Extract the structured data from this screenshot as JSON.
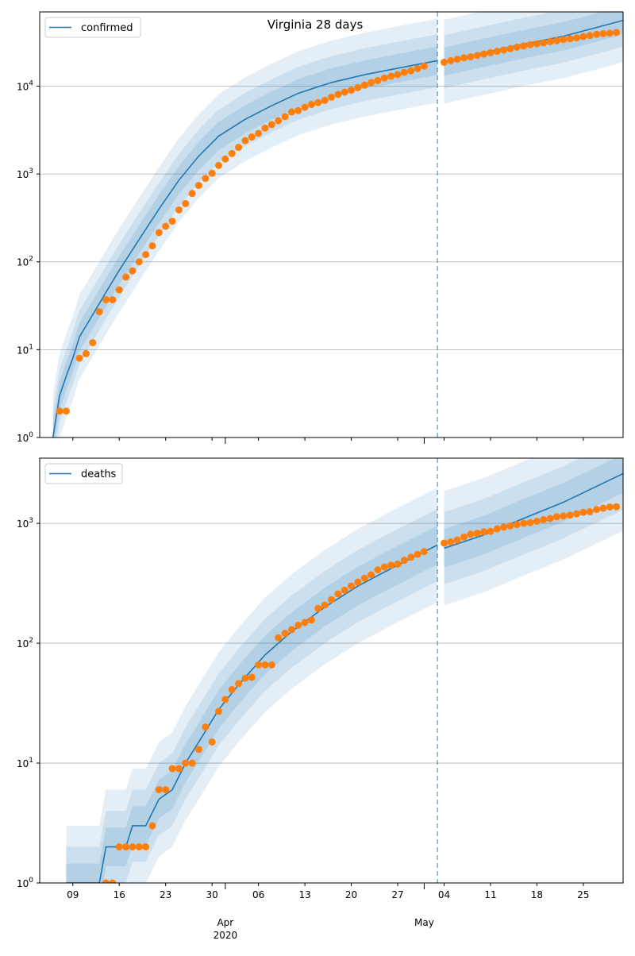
{
  "chart_data": [
    {
      "type": "line",
      "title": "Virginia 28 days",
      "yscale": "log",
      "ylim": [
        1,
        70000
      ],
      "y_ticks": [
        {
          "value": 1,
          "mantissa": "10",
          "exponent": "0"
        },
        {
          "value": 10,
          "mantissa": "10",
          "exponent": "1"
        },
        {
          "value": 100,
          "mantissa": "10",
          "exponent": "2"
        },
        {
          "value": 1000,
          "mantissa": "10",
          "exponent": "3"
        },
        {
          "value": 10000,
          "mantissa": "10",
          "exponent": "4"
        }
      ],
      "grid": "y-major",
      "legend": {
        "placement": "upper-left",
        "label": "confirmed"
      },
      "vline_date": "2020-05-03",
      "series": [
        {
          "name": "confirmed",
          "kind": "model-line",
          "points": [
            [
              "2020-03-06",
              1
            ],
            [
              "2020-03-07",
              3
            ],
            [
              "2020-03-08",
              5
            ],
            [
              "2020-03-09",
              8
            ],
            [
              "2020-03-10",
              14
            ],
            [
              "2020-03-12",
              25
            ],
            [
              "2020-03-14",
              45
            ],
            [
              "2020-03-16",
              80
            ],
            [
              "2020-03-19",
              180
            ],
            [
              "2020-03-22",
              400
            ],
            [
              "2020-03-25",
              850
            ],
            [
              "2020-03-28",
              1600
            ],
            [
              "2020-03-31",
              2700
            ],
            [
              "2020-04-04",
              4200
            ],
            [
              "2020-04-08",
              6000
            ],
            [
              "2020-04-12",
              8300
            ],
            [
              "2020-04-17",
              11000
            ],
            [
              "2020-04-22",
              13500
            ],
            [
              "2020-04-27",
              16000
            ],
            [
              "2020-05-03",
              19500
            ]
          ]
        },
        {
          "kind": "forecast-line",
          "points": [
            [
              "2020-05-04",
              19000
            ],
            [
              "2020-05-10",
              24000
            ],
            [
              "2020-05-16",
              30000
            ],
            [
              "2020-05-22",
              37000
            ],
            [
              "2020-05-31",
              56000
            ]
          ]
        },
        {
          "kind": "observed",
          "points": [
            [
              "2020-03-07",
              2
            ],
            [
              "2020-03-08",
              2
            ],
            [
              "2020-03-10",
              8
            ],
            [
              "2020-03-11",
              9
            ],
            [
              "2020-03-12",
              12
            ],
            [
              "2020-03-13",
              27
            ],
            [
              "2020-03-14",
              37
            ],
            [
              "2020-03-15",
              37
            ],
            [
              "2020-03-16",
              48
            ],
            [
              "2020-03-17",
              67
            ],
            [
              "2020-03-18",
              79
            ],
            [
              "2020-03-19",
              100
            ],
            [
              "2020-03-20",
              121
            ],
            [
              "2020-03-21",
              152
            ],
            [
              "2020-03-22",
              215
            ],
            [
              "2020-03-23",
              254
            ],
            [
              "2020-03-24",
              290
            ],
            [
              "2020-03-25",
              390
            ],
            [
              "2020-03-26",
              460
            ],
            [
              "2020-03-27",
              600
            ],
            [
              "2020-03-28",
              740
            ],
            [
              "2020-03-29",
              890
            ],
            [
              "2020-03-30",
              1020
            ],
            [
              "2020-03-31",
              1250
            ],
            [
              "2020-04-01",
              1480
            ],
            [
              "2020-04-02",
              1710
            ],
            [
              "2020-04-03",
              2010
            ],
            [
              "2020-04-04",
              2400
            ],
            [
              "2020-04-05",
              2640
            ],
            [
              "2020-04-06",
              2900
            ],
            [
              "2020-04-07",
              3330
            ],
            [
              "2020-04-08",
              3650
            ],
            [
              "2020-04-09",
              4040
            ],
            [
              "2020-04-10",
              4500
            ],
            [
              "2020-04-11",
              5080
            ],
            [
              "2020-04-12",
              5270
            ],
            [
              "2020-04-13",
              5750
            ],
            [
              "2020-04-14",
              6180
            ],
            [
              "2020-04-15",
              6500
            ],
            [
              "2020-04-16",
              6890
            ],
            [
              "2020-04-17",
              7490
            ],
            [
              "2020-04-18",
              8050
            ],
            [
              "2020-04-19",
              8540
            ],
            [
              "2020-04-20",
              8990
            ],
            [
              "2020-04-21",
              9630
            ],
            [
              "2020-04-22",
              10270
            ],
            [
              "2020-04-23",
              10990
            ],
            [
              "2020-04-24",
              11600
            ],
            [
              "2020-04-25",
              12370
            ],
            [
              "2020-04-26",
              12970
            ],
            [
              "2020-04-27",
              13540
            ],
            [
              "2020-04-28",
              14340
            ],
            [
              "2020-04-29",
              14960
            ],
            [
              "2020-04-30",
              15850
            ],
            [
              "2020-05-01",
              16900
            ],
            [
              "2020-05-04",
              18700
            ],
            [
              "2020-05-05",
              19500
            ],
            [
              "2020-05-06",
              20260
            ],
            [
              "2020-05-07",
              21000
            ],
            [
              "2020-05-08",
              21570
            ],
            [
              "2020-05-09",
              22340
            ],
            [
              "2020-05-10",
              23200
            ],
            [
              "2020-05-11",
              24080
            ],
            [
              "2020-05-12",
              24900
            ],
            [
              "2020-05-13",
              25800
            ],
            [
              "2020-05-14",
              26700
            ],
            [
              "2020-05-15",
              27800
            ],
            [
              "2020-05-16",
              28670
            ],
            [
              "2020-05-17",
              29680
            ],
            [
              "2020-05-18",
              30390
            ],
            [
              "2020-05-19",
              31140
            ],
            [
              "2020-05-20",
              32140
            ],
            [
              "2020-05-21",
              32900
            ],
            [
              "2020-05-22",
              33900
            ],
            [
              "2020-05-23",
              34600
            ],
            [
              "2020-05-24",
              35500
            ],
            [
              "2020-05-25",
              36700
            ],
            [
              "2020-05-26",
              37700
            ],
            [
              "2020-05-27",
              38900
            ],
            [
              "2020-05-28",
              39600
            ],
            [
              "2020-05-29",
              40200
            ],
            [
              "2020-05-30",
              40900
            ]
          ]
        }
      ]
    },
    {
      "type": "line",
      "yscale": "log",
      "ylim": [
        1,
        3500
      ],
      "y_ticks": [
        {
          "value": 1,
          "mantissa": "10",
          "exponent": "0"
        },
        {
          "value": 10,
          "mantissa": "10",
          "exponent": "1"
        },
        {
          "value": 100,
          "mantissa": "10",
          "exponent": "2"
        },
        {
          "value": 1000,
          "mantissa": "10",
          "exponent": "3"
        }
      ],
      "grid": "y-major",
      "legend": {
        "placement": "upper-left",
        "label": "deaths"
      },
      "vline_date": "2020-05-03",
      "series": [
        {
          "name": "deaths",
          "kind": "model-line",
          "points": [
            [
              "2020-03-08",
              1
            ],
            [
              "2020-03-13",
              1
            ],
            [
              "2020-03-14",
              2
            ],
            [
              "2020-03-17",
              2
            ],
            [
              "2020-03-18",
              3
            ],
            [
              "2020-03-20",
              3
            ],
            [
              "2020-03-22",
              5
            ],
            [
              "2020-03-24",
              6
            ],
            [
              "2020-03-26",
              10
            ],
            [
              "2020-03-28",
              15
            ],
            [
              "2020-03-31",
              28
            ],
            [
              "2020-04-03",
              45
            ],
            [
              "2020-04-07",
              80
            ],
            [
              "2020-04-11",
              125
            ],
            [
              "2020-04-16",
              200
            ],
            [
              "2020-04-21",
              300
            ],
            [
              "2020-04-26",
              420
            ],
            [
              "2020-05-03",
              660
            ]
          ]
        },
        {
          "kind": "forecast-line",
          "points": [
            [
              "2020-05-04",
              620
            ],
            [
              "2020-05-10",
              800
            ],
            [
              "2020-05-16",
              1100
            ],
            [
              "2020-05-22",
              1500
            ],
            [
              "2020-05-31",
              2600
            ]
          ]
        },
        {
          "kind": "observed",
          "points": [
            [
              "2020-03-14",
              1
            ],
            [
              "2020-03-15",
              1
            ],
            [
              "2020-03-16",
              2
            ],
            [
              "2020-03-17",
              2
            ],
            [
              "2020-03-18",
              2
            ],
            [
              "2020-03-19",
              2
            ],
            [
              "2020-03-20",
              2
            ],
            [
              "2020-03-21",
              3
            ],
            [
              "2020-03-22",
              6
            ],
            [
              "2020-03-23",
              6
            ],
            [
              "2020-03-24",
              9
            ],
            [
              "2020-03-25",
              9
            ],
            [
              "2020-03-26",
              10
            ],
            [
              "2020-03-27",
              10
            ],
            [
              "2020-03-28",
              13
            ],
            [
              "2020-03-29",
              20
            ],
            [
              "2020-03-30",
              15
            ],
            [
              "2020-03-31",
              27
            ],
            [
              "2020-04-01",
              34
            ],
            [
              "2020-04-02",
              41
            ],
            [
              "2020-04-03",
              46
            ],
            [
              "2020-04-04",
              51
            ],
            [
              "2020-04-05",
              52
            ],
            [
              "2020-04-06",
              66
            ],
            [
              "2020-04-07",
              66
            ],
            [
              "2020-04-08",
              66
            ],
            [
              "2020-04-09",
              111
            ],
            [
              "2020-04-10",
              121
            ],
            [
              "2020-04-11",
              130
            ],
            [
              "2020-04-12",
              141
            ],
            [
              "2020-04-13",
              149
            ],
            [
              "2020-04-14",
              156
            ],
            [
              "2020-04-15",
              195
            ],
            [
              "2020-04-16",
              208
            ],
            [
              "2020-04-17",
              231
            ],
            [
              "2020-04-18",
              258
            ],
            [
              "2020-04-19",
              277
            ],
            [
              "2020-04-20",
              300
            ],
            [
              "2020-04-21",
              324
            ],
            [
              "2020-04-22",
              349
            ],
            [
              "2020-04-23",
              372
            ],
            [
              "2020-04-24",
              410
            ],
            [
              "2020-04-25",
              433
            ],
            [
              "2020-04-26",
              448
            ],
            [
              "2020-04-27",
              458
            ],
            [
              "2020-04-28",
              492
            ],
            [
              "2020-04-29",
              522
            ],
            [
              "2020-04-30",
              552
            ],
            [
              "2020-05-01",
              581
            ],
            [
              "2020-05-04",
              684
            ],
            [
              "2020-05-05",
              700
            ],
            [
              "2020-05-06",
              727
            ],
            [
              "2020-05-07",
              769
            ],
            [
              "2020-05-08",
              812
            ],
            [
              "2020-05-09",
              827
            ],
            [
              "2020-05-10",
              850
            ],
            [
              "2020-05-11",
              859
            ],
            [
              "2020-05-12",
              900
            ],
            [
              "2020-05-13",
              930
            ],
            [
              "2020-05-14",
              950
            ],
            [
              "2020-05-15",
              977
            ],
            [
              "2020-05-16",
              1002
            ],
            [
              "2020-05-17",
              1014
            ],
            [
              "2020-05-18",
              1041
            ],
            [
              "2020-05-19",
              1075
            ],
            [
              "2020-05-20",
              1099
            ],
            [
              "2020-05-21",
              1136
            ],
            [
              "2020-05-22",
              1153
            ],
            [
              "2020-05-23",
              1171
            ],
            [
              "2020-05-24",
              1200
            ],
            [
              "2020-05-25",
              1236
            ],
            [
              "2020-05-26",
              1250
            ],
            [
              "2020-05-27",
              1306
            ],
            [
              "2020-05-28",
              1338
            ],
            [
              "2020-05-29",
              1370
            ],
            [
              "2020-05-30",
              1375
            ]
          ]
        }
      ]
    }
  ],
  "x_axis": {
    "range": [
      "2020-03-04",
      "2020-05-31"
    ],
    "minor_ticks": [
      "2020-03-09",
      "2020-03-16",
      "2020-03-23",
      "2020-03-30",
      "2020-04-06",
      "2020-04-13",
      "2020-04-20",
      "2020-04-27",
      "2020-05-04",
      "2020-05-11",
      "2020-05-18",
      "2020-05-25"
    ],
    "minor_tick_labels": [
      "09",
      "16",
      "23",
      "30",
      "06",
      "13",
      "20",
      "27",
      "04",
      "11",
      "18",
      "25"
    ],
    "major_ticks": [
      "2020-04-01",
      "2020-05-01"
    ],
    "major_tick_labels": [
      "Apr",
      "May"
    ],
    "year_label": "2020"
  },
  "colors": {
    "line": "#1f77b4",
    "observed": "#ff7f0e",
    "band": "#1f77b4",
    "grid": "#b0b0b0"
  }
}
